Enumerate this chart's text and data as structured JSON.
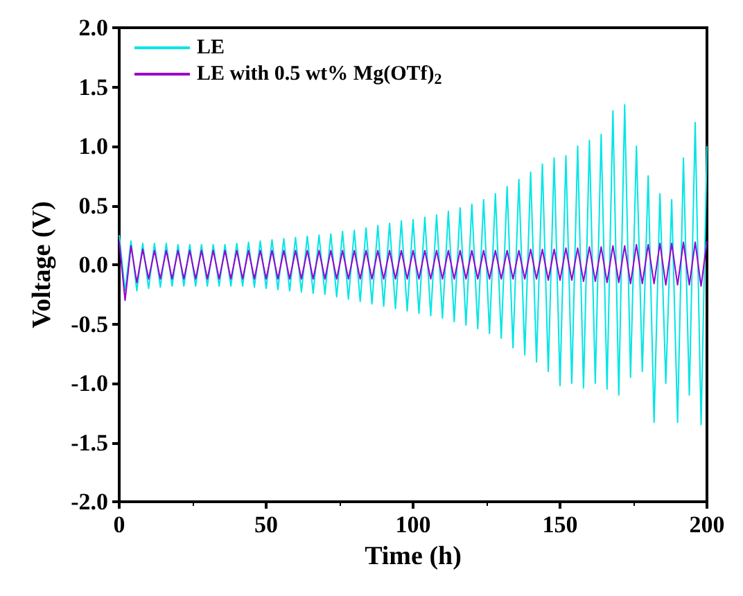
{
  "chart_data": {
    "type": "line",
    "xlabel": "Time (h)",
    "ylabel": "Voltage (V)",
    "x": [
      0,
      2,
      4,
      6,
      8,
      10,
      12,
      14,
      16,
      18,
      20,
      22,
      24,
      26,
      28,
      30,
      32,
      34,
      36,
      38,
      40,
      42,
      44,
      46,
      48,
      50,
      52,
      54,
      56,
      58,
      60,
      62,
      64,
      66,
      68,
      70,
      72,
      74,
      76,
      78,
      80,
      82,
      84,
      86,
      88,
      90,
      92,
      94,
      96,
      98,
      100,
      102,
      104,
      106,
      108,
      110,
      112,
      114,
      116,
      118,
      120,
      122,
      124,
      126,
      128,
      130,
      132,
      134,
      136,
      138,
      140,
      142,
      144,
      146,
      148,
      150,
      152,
      154,
      156,
      158,
      160,
      162,
      164,
      166,
      168,
      170,
      172,
      174,
      176,
      178,
      180,
      182,
      184,
      186,
      188,
      190,
      192,
      194,
      196,
      198,
      200
    ],
    "series": [
      {
        "name": "LE",
        "color": "#00e5e5",
        "values": [
          0.25,
          -0.22,
          0.2,
          -0.22,
          0.18,
          -0.2,
          0.18,
          -0.19,
          0.18,
          -0.18,
          0.17,
          -0.18,
          0.17,
          -0.18,
          0.17,
          -0.18,
          0.17,
          -0.18,
          0.17,
          -0.18,
          0.18,
          -0.18,
          0.19,
          -0.19,
          0.2,
          -0.2,
          0.21,
          -0.21,
          0.22,
          -0.22,
          0.23,
          -0.23,
          0.24,
          -0.24,
          0.25,
          -0.25,
          0.26,
          -0.27,
          0.28,
          -0.29,
          0.29,
          -0.31,
          0.31,
          -0.33,
          0.33,
          -0.35,
          0.35,
          -0.37,
          0.37,
          -0.39,
          0.38,
          -0.41,
          0.4,
          -0.43,
          0.42,
          -0.45,
          0.45,
          -0.48,
          0.48,
          -0.51,
          0.51,
          -0.54,
          0.55,
          -0.58,
          0.6,
          -0.62,
          0.66,
          -0.7,
          0.72,
          -0.76,
          0.78,
          -0.82,
          0.85,
          -0.9,
          0.9,
          -1.02,
          0.92,
          -1.0,
          1.0,
          -1.04,
          1.05,
          -1.0,
          1.1,
          -1.05,
          1.3,
          -1.1,
          1.35,
          -0.95,
          1.0,
          -0.9,
          0.75,
          -1.33,
          0.6,
          -1.0,
          0.55,
          -1.33,
          0.9,
          -1.1,
          1.2,
          -1.35,
          1.0
        ]
      },
      {
        "name": "LE with 0.5 wt% Mg(OTf)$_{2}$",
        "color": "#9900cc",
        "values": [
          0.2,
          -0.3,
          0.16,
          -0.15,
          0.13,
          -0.12,
          0.12,
          -0.12,
          0.12,
          -0.12,
          0.12,
          -0.12,
          0.12,
          -0.12,
          0.12,
          -0.12,
          0.12,
          -0.12,
          0.12,
          -0.12,
          0.12,
          -0.12,
          0.12,
          -0.12,
          0.12,
          -0.12,
          0.12,
          -0.12,
          0.12,
          -0.12,
          0.12,
          -0.12,
          0.12,
          -0.12,
          0.12,
          -0.12,
          0.12,
          -0.12,
          0.12,
          -0.12,
          0.12,
          -0.12,
          0.12,
          -0.12,
          0.12,
          -0.12,
          0.12,
          -0.12,
          0.12,
          -0.12,
          0.12,
          -0.12,
          0.12,
          -0.12,
          0.12,
          -0.12,
          0.12,
          -0.12,
          0.12,
          -0.12,
          0.12,
          -0.12,
          0.12,
          -0.12,
          0.12,
          -0.12,
          0.12,
          -0.12,
          0.12,
          -0.12,
          0.13,
          -0.12,
          0.13,
          -0.13,
          0.13,
          -0.13,
          0.14,
          -0.13,
          0.14,
          -0.14,
          0.15,
          -0.14,
          0.15,
          -0.15,
          0.16,
          -0.15,
          0.16,
          -0.16,
          0.17,
          -0.16,
          0.17,
          -0.16,
          0.18,
          -0.17,
          0.18,
          -0.17,
          0.19,
          -0.17,
          0.19,
          -0.18,
          0.2
        ]
      }
    ],
    "xlim": [
      0,
      200
    ],
    "xticks": [
      0,
      50,
      100,
      150,
      200
    ],
    "ylim": [
      -2.0,
      2.0
    ],
    "yticks": [
      {
        "value": -2,
        "label": "-2.0"
      },
      {
        "value": -1.5,
        "label": "-1.5"
      },
      {
        "value": -1,
        "label": "-1.0"
      },
      {
        "value": -0.5,
        "label": "-0.5"
      },
      {
        "value": 0,
        "label": "0.0"
      },
      {
        "value": 0.5,
        "label": "0.5"
      },
      {
        "value": 1,
        "label": "1.0"
      },
      {
        "value": 1.5,
        "label": "1.5"
      },
      {
        "value": 2,
        "label": "2.0"
      }
    ],
    "legend": "top left",
    "grid": false,
    "marker": "none",
    "line_style": "solid"
  }
}
